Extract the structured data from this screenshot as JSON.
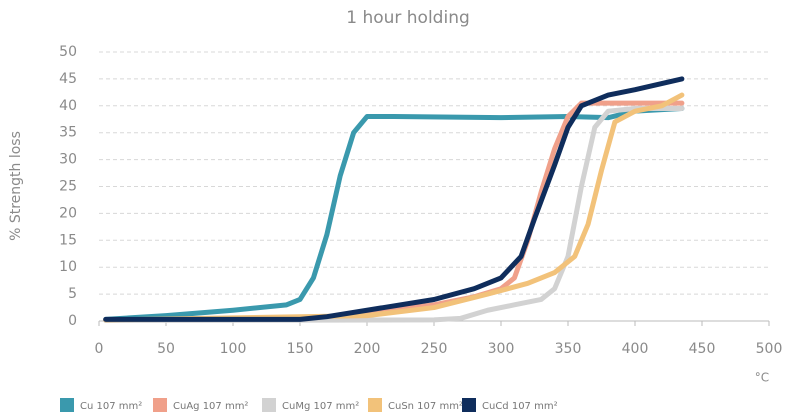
{
  "chart_data": {
    "type": "line",
    "title": "1 hour holding",
    "y_label": "% Strength loss",
    "x_label": "°C",
    "xlim": [
      0,
      500
    ],
    "xticks": [
      0,
      50,
      100,
      150,
      200,
      250,
      300,
      350,
      400,
      450,
      500
    ],
    "ylim": [
      0,
      50
    ],
    "yticks": [
      0,
      5,
      10,
      15,
      20,
      25,
      30,
      35,
      40,
      45,
      50
    ],
    "grid": true,
    "series": [
      {
        "name": "Cu 107 mm²",
        "color": "#3a99ad",
        "x": [
          5,
          50,
          100,
          140,
          150,
          160,
          170,
          180,
          190,
          200,
          220,
          300,
          350,
          380,
          400,
          435
        ],
        "values": [
          0.3,
          1,
          2,
          3,
          4,
          8,
          16,
          27,
          35,
          38,
          38,
          37.8,
          38,
          37.8,
          39,
          39.5
        ]
      },
      {
        "name": "CuAg 107 mm²",
        "color": "#f0a08a",
        "x": [
          5,
          150,
          170,
          200,
          250,
          280,
          300,
          310,
          320,
          330,
          340,
          350,
          360,
          380,
          435
        ],
        "values": [
          0.2,
          0.3,
          0.5,
          1.5,
          3,
          4.5,
          6,
          8,
          15,
          24,
          32,
          38,
          40.5,
          40.5,
          40.5
        ]
      },
      {
        "name": "CuMg 107 mm²",
        "color": "#d2d2d2",
        "x": [
          5,
          250,
          270,
          290,
          310,
          330,
          340,
          350,
          360,
          370,
          380,
          400,
          435
        ],
        "values": [
          0.1,
          0.2,
          0.5,
          2,
          3,
          4,
          6,
          12,
          25,
          36,
          39,
          39.5,
          39.5
        ]
      },
      {
        "name": "CuSn 107 mm²",
        "color": "#f2c27a",
        "x": [
          5,
          200,
          250,
          290,
          320,
          340,
          355,
          365,
          375,
          385,
          400,
          420,
          435
        ],
        "values": [
          0.2,
          1,
          2.5,
          5,
          7,
          9,
          12,
          18,
          28,
          37,
          39,
          40,
          42
        ]
      },
      {
        "name": "CuCd 107 mm²",
        "color": "#0f2d5c",
        "x": [
          5,
          150,
          170,
          200,
          250,
          280,
          300,
          315,
          325,
          340,
          350,
          360,
          380,
          400,
          435
        ],
        "values": [
          0.3,
          0.3,
          0.8,
          2,
          4,
          6,
          8,
          12,
          19,
          29,
          36,
          40,
          42,
          43,
          45
        ]
      }
    ]
  }
}
